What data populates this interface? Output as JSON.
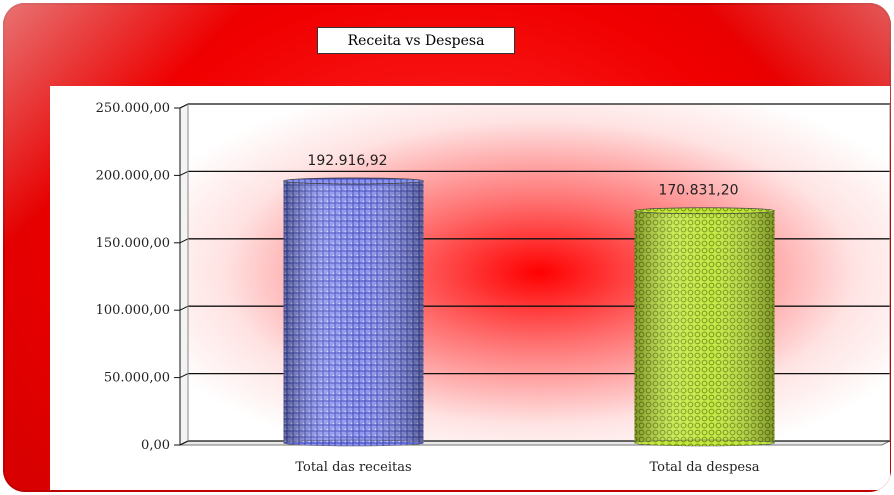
{
  "chart_data": {
    "type": "bar",
    "title": "Receita vs Despesa",
    "categories": [
      "Total das receitas",
      "Total da despesa"
    ],
    "values": [
      192916.92,
      170831.2
    ],
    "value_labels": [
      "192.916,92",
      "170.831,20"
    ],
    "y_ticks": [
      0,
      50000,
      100000,
      150000,
      200000,
      250000
    ],
    "y_tick_labels": [
      "0,00",
      "50.000,00",
      "100.000,00",
      "150.000,00",
      "200.000,00",
      "250.000,00"
    ],
    "ylim": [
      0,
      250000
    ],
    "grid": true,
    "legend": "none",
    "bar_colors": [
      "#6f78e0",
      "#b3d62e"
    ],
    "background_color": "#f20000"
  }
}
